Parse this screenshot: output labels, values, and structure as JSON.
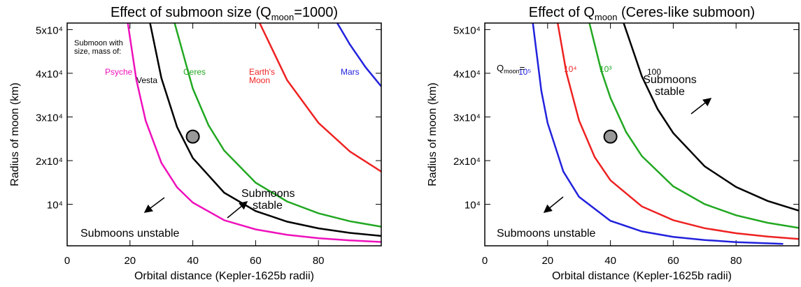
{
  "chart_data": [
    {
      "type": "line",
      "title": [
        "Effect of submoon size (Q",
        "moon",
        "=1000)"
      ],
      "xlabel": "Orbital distance (Kepler-1625b radii)",
      "ylabel": "Radius of moon (km)",
      "xlim": [
        0,
        100
      ],
      "ylim": [
        500,
        51500
      ],
      "xticks": [
        0,
        20,
        40,
        60,
        80
      ],
      "yticks": [
        {
          "value": 10000,
          "label": "10⁴"
        },
        {
          "value": 20000,
          "label": "2x10⁴"
        },
        {
          "value": 30000,
          "label": "3x10⁴"
        },
        {
          "value": 40000,
          "label": "4x10⁴"
        },
        {
          "value": 50000,
          "label": "5x10⁴"
        }
      ],
      "series": [
        {
          "name": "Psyche",
          "color": "#ee11bb",
          "x": [
            19.3,
            22,
            25,
            30,
            35,
            40,
            50,
            60,
            70,
            80,
            90,
            100
          ],
          "values": [
            51500,
            38600,
            29100,
            19500,
            13900,
            10400,
            6350,
            4250,
            3020,
            2250,
            1740,
            1380
          ]
        },
        {
          "name": "Vesta",
          "color": "#000000",
          "x": [
            26.4,
            30,
            35,
            40,
            50,
            60,
            70,
            80,
            90,
            100
          ],
          "values": [
            51500,
            38900,
            27700,
            20600,
            12650,
            8460,
            6030,
            4490,
            3460,
            2750
          ]
        },
        {
          "name": "Ceres",
          "color": "#22a822",
          "x": [
            34.2,
            40,
            45,
            50,
            60,
            70,
            80,
            90,
            100
          ],
          "values": [
            51500,
            36500,
            28100,
            22300,
            14950,
            10650,
            7950,
            6130,
            4860
          ]
        },
        {
          "name": "Earth's Moon",
          "color": "#ee2222",
          "x": [
            61.3,
            70,
            80,
            90,
            100
          ],
          "values": [
            51500,
            38450,
            28650,
            22100,
            17500
          ]
        },
        {
          "name": "Mars",
          "color": "#2222dd",
          "x": [
            86,
            90,
            95,
            100
          ],
          "values": [
            51500,
            46600,
            41400,
            37000
          ]
        }
      ],
      "marker": {
        "x": 40,
        "y": 25500
      },
      "annotations": [
        {
          "text": "Submoon with size, mass of:"
        },
        {
          "text": "Submoons stable"
        },
        {
          "text": "Submoons unstable"
        }
      ]
    },
    {
      "type": "line",
      "title": [
        "Effect of Q",
        "moon",
        " (Ceres-like submoon)"
      ],
      "xlabel": "Orbital distance (Kepler-1625b radii)",
      "ylabel": "Radius of moon (km)",
      "xlim": [
        0,
        100
      ],
      "ylim": [
        500,
        51500
      ],
      "xticks": [
        0,
        20,
        40,
        60,
        80
      ],
      "yticks": [
        {
          "value": 10000,
          "label": "10⁴"
        },
        {
          "value": 20000,
          "label": "2x10⁴"
        },
        {
          "value": 30000,
          "label": "3x10⁴"
        },
        {
          "value": 40000,
          "label": "4x10⁴"
        },
        {
          "value": 50000,
          "label": "5x10⁴"
        }
      ],
      "series": [
        {
          "name": "10⁵",
          "color": "#2222dd",
          "x": [
            15.3,
            18,
            20,
            25,
            30,
            40,
            50,
            60,
            70,
            80,
            95
          ],
          "values": [
            51500,
            36000,
            28600,
            17500,
            11700,
            6220,
            3800,
            2550,
            1820,
            1350,
            927
          ]
        },
        {
          "name": "10⁴",
          "color": "#ee2222",
          "x": [
            23.2,
            26,
            30,
            35,
            40,
            50,
            60,
            70,
            80,
            90,
            100
          ],
          "values": [
            51500,
            40100,
            29200,
            20800,
            15500,
            9520,
            6370,
            4530,
            3380,
            2610,
            2070
          ]
        },
        {
          "name": "10³",
          "color": "#22a822",
          "x": [
            33.3,
            37,
            40,
            45,
            50,
            60,
            70,
            80,
            90,
            100
          ],
          "values": [
            51500,
            40800,
            34400,
            26550,
            21050,
            14100,
            10050,
            7490,
            5780,
            4590
          ]
        },
        {
          "name": "100",
          "color": "#000000",
          "x": [
            44.2,
            50,
            55,
            60,
            70,
            80,
            90,
            100
          ],
          "values": [
            51500,
            39300,
            31800,
            26300,
            18700,
            13960,
            10780,
            8540
          ]
        }
      ],
      "marker": {
        "x": 40,
        "y": 25500
      },
      "annotations": [
        {
          "text": [
            "Q",
            "moon",
            "="
          ]
        },
        {
          "text": "Submoons stable"
        },
        {
          "text": "Submoons unstable"
        }
      ]
    }
  ]
}
